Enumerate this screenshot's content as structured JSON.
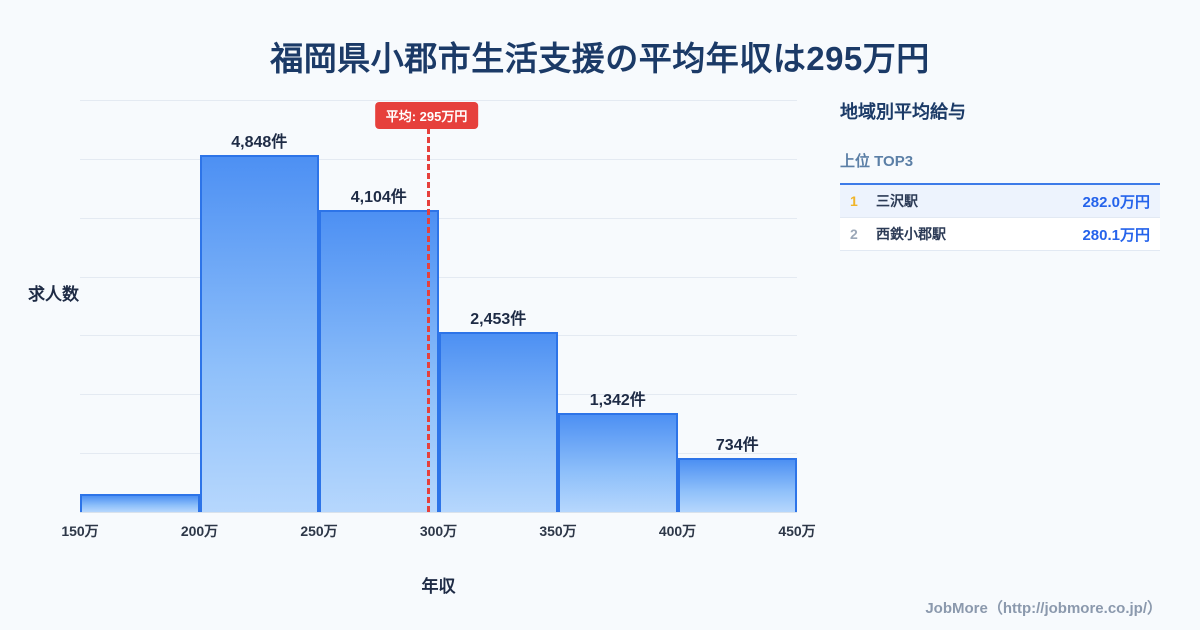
{
  "page": {
    "title": "福岡県小郡市生活支援の平均年収は295万円",
    "background": "#f7fafd"
  },
  "chart_data": {
    "type": "bar",
    "title": "福岡県小郡市生活支援の平均年収は295万円",
    "xlabel": "年収",
    "ylabel": "求人数",
    "x_range": [
      150,
      450
    ],
    "ylim": [
      0,
      5600
    ],
    "grid": true,
    "legend": "none",
    "categories": [
      "150万",
      "200万",
      "250万",
      "300万",
      "350万",
      "400万",
      "450万"
    ],
    "bins": [
      {
        "range": "150万-200万",
        "value": 250,
        "label": ""
      },
      {
        "range": "200万-250万",
        "value": 4848,
        "label": "4,848件"
      },
      {
        "range": "250万-300万",
        "value": 4104,
        "label": "4,104件"
      },
      {
        "range": "300万-350万",
        "value": 2453,
        "label": "2,453件"
      },
      {
        "range": "350万-400万",
        "value": 1342,
        "label": "1,342件"
      },
      {
        "range": "400万-450万",
        "value": 734,
        "label": "734件"
      }
    ],
    "average_line": {
      "value": 295,
      "label": "平均: 295万円",
      "color": "#e6403c"
    },
    "bar_fill_top": "#4d90f3",
    "bar_fill_bottom": "#b6d7fd",
    "bar_border": "#2d74e8"
  },
  "panel": {
    "heading": "地域別平均給与",
    "subheading": "上位 TOP3",
    "rows": [
      {
        "rank": "1",
        "name": "三沢駅",
        "value": "282.0万円"
      },
      {
        "rank": "2",
        "name": "西鉄小郡駅",
        "value": "280.1万円"
      }
    ]
  },
  "footer": {
    "credit": "JobMore（http://jobmore.co.jp/）"
  }
}
